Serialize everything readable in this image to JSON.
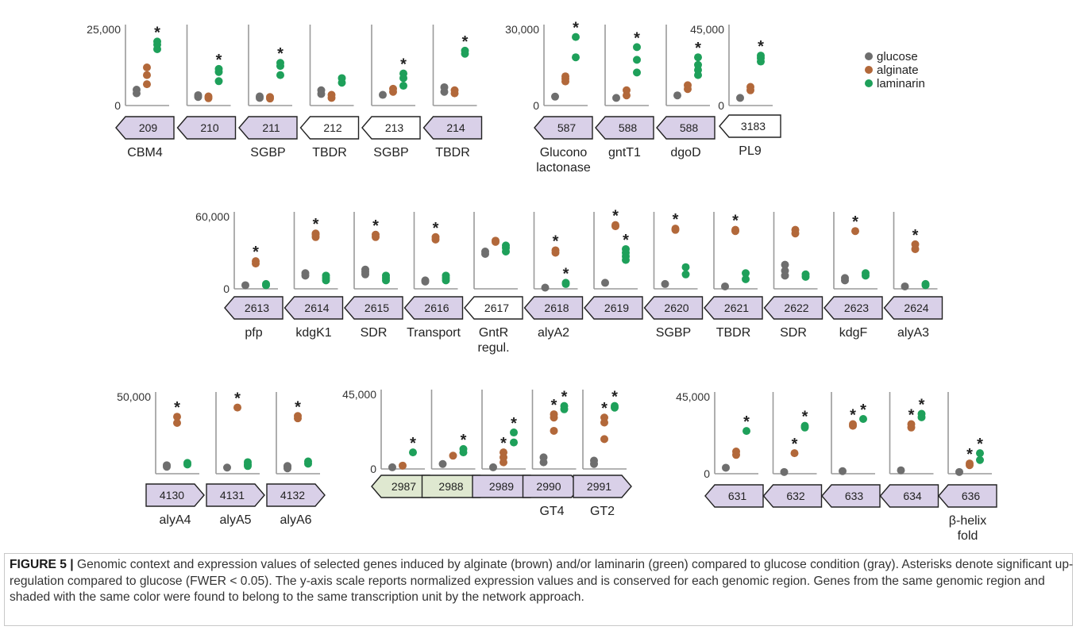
{
  "caption": {
    "label": "FIGURE 5 |",
    "text": "Genomic context and expression values of selected genes induced by alginate (brown) and/or laminarin (green) compared to glucose condition (gray). Asterisks denote significant up-regulation compared to glucose (FWER < 0.05). The y-axis scale reports normalized expression values and is conserved for each genomic region. Genes from the same genomic region and shaded with the same color were found to belong to the same transcription unit by the network approach."
  },
  "legend": [
    {
      "name": "glucose",
      "color": "#6e6e6e"
    },
    {
      "name": "alginate",
      "color": "#b2683a"
    },
    {
      "name": "laminarin",
      "color": "#1ea05a"
    }
  ],
  "colors": {
    "gene_purple": "#d9d0e8",
    "gene_green": "#dfe8d0",
    "gene_white": "#ffffff",
    "axis": "#9a9a9a"
  },
  "chart_data": [
    {
      "type": "scatter",
      "region": "A",
      "ymin_label": "0",
      "ymax_label": "25,000",
      "ylim": [
        0,
        25000
      ],
      "genes": [
        {
          "id": "209",
          "name": "CBM4",
          "dir": "left",
          "fill": "purple",
          "glucose": [
            4000,
            5200
          ],
          "alginate": [
            7000,
            10000,
            12500
          ],
          "laminarin": [
            18500,
            20000,
            21000
          ],
          "sig": [
            "laminarin"
          ]
        },
        {
          "id": "210",
          "name": "",
          "dir": "left",
          "fill": "purple",
          "glucose": [
            2800,
            3400
          ],
          "alginate": [
            2400,
            3000
          ],
          "laminarin": [
            8000,
            11000,
            12000
          ],
          "sig": [
            "laminarin"
          ]
        },
        {
          "id": "211",
          "name": "SGBP",
          "dir": "left",
          "fill": "purple",
          "glucose": [
            2500,
            3000
          ],
          "alginate": [
            2300,
            2800
          ],
          "laminarin": [
            10000,
            13000,
            14000
          ],
          "sig": [
            "laminarin"
          ]
        },
        {
          "id": "212",
          "name": "TBDR",
          "dir": "left",
          "fill": "white",
          "glucose": [
            3800,
            5000
          ],
          "alginate": [
            2500,
            3500
          ],
          "laminarin": [
            7500,
            9000
          ],
          "sig": []
        },
        {
          "id": "213",
          "name": "SGBP",
          "dir": "left",
          "fill": "white",
          "glucose": [
            3500
          ],
          "alginate": [
            4500,
            5500
          ],
          "laminarin": [
            6500,
            9000,
            10500
          ],
          "sig": [
            "laminarin"
          ]
        },
        {
          "id": "214",
          "name": "TBDR",
          "dir": "left",
          "fill": "purple",
          "glucose": [
            4500,
            6000
          ],
          "alginate": [
            4000,
            5000
          ],
          "laminarin": [
            17000,
            18000
          ],
          "sig": [
            "laminarin"
          ]
        }
      ]
    },
    {
      "type": "scatter",
      "region": "B",
      "ymin_label": "0",
      "ymax_label": "30,000",
      "ylim": [
        0,
        30000
      ],
      "genes": [
        {
          "id": "587",
          "name": "Glucono\nlactonase",
          "dir": "left",
          "fill": "purple",
          "glucose": [
            3500
          ],
          "alginate": [
            9500,
            10500,
            11500
          ],
          "laminarin": [
            19000,
            27000
          ],
          "sig": [
            "laminarin"
          ]
        },
        {
          "id": "588",
          "name": "gntT1",
          "dir": "left",
          "fill": "purple",
          "glucose": [
            3000
          ],
          "alginate": [
            4000,
            6000
          ],
          "laminarin": [
            13000,
            18000,
            23000
          ],
          "sig": [
            "laminarin"
          ]
        },
        {
          "id": "588",
          "name": "dgoD",
          "dir": "left",
          "fill": "purple",
          "glucose": [
            4000
          ],
          "alginate": [
            6500,
            8000
          ],
          "laminarin": [
            12000,
            14000,
            16000,
            19000
          ],
          "sig": [
            "laminarin"
          ]
        }
      ]
    },
    {
      "type": "scatter",
      "region": "C",
      "ymin_label": "0",
      "ymax_label": "45,000",
      "ylim": [
        0,
        45000
      ],
      "genes": [
        {
          "id": "3183",
          "name": "PL9",
          "dir": "left",
          "fill": "white",
          "glucose": [
            4500
          ],
          "alginate": [
            9000,
            11000
          ],
          "laminarin": [
            26000,
            28000,
            29500
          ],
          "sig": [
            "laminarin"
          ]
        }
      ]
    },
    {
      "type": "scatter",
      "region": "D",
      "ymin_label": "0",
      "ymax_label": "60,000",
      "ylim": [
        0,
        60000
      ],
      "genes": [
        {
          "id": "2613",
          "name": "pfp",
          "dir": "left",
          "fill": "purple",
          "glucose": [
            3000
          ],
          "alginate": [
            21000,
            23000
          ],
          "laminarin": [
            3000,
            4000
          ],
          "sig": [
            "alginate"
          ]
        },
        {
          "id": "2614",
          "name": "kdgK1",
          "dir": "left",
          "fill": "purple",
          "glucose": [
            11000,
            13000
          ],
          "alginate": [
            43000,
            45000,
            46000
          ],
          "laminarin": [
            7000,
            9000,
            11000
          ],
          "sig": [
            "alginate"
          ]
        },
        {
          "id": "2615",
          "name": "SDR",
          "dir": "left",
          "fill": "purple",
          "glucose": [
            12000,
            14000,
            16000
          ],
          "alginate": [
            43000,
            45000
          ],
          "laminarin": [
            7000,
            9000,
            11000
          ],
          "sig": [
            "alginate"
          ]
        },
        {
          "id": "2616",
          "name": "Transport",
          "dir": "left",
          "fill": "purple",
          "glucose": [
            6000,
            7000
          ],
          "alginate": [
            41000,
            43000
          ],
          "laminarin": [
            7000,
            9000,
            11000
          ],
          "sig": [
            "alginate"
          ]
        },
        {
          "id": "2617",
          "name": "GntR\nregul.",
          "dir": "left",
          "fill": "white",
          "glucose": [
            29000,
            31000
          ],
          "alginate": [
            39000,
            40000
          ],
          "laminarin": [
            31000,
            34000,
            36000
          ],
          "sig": []
        },
        {
          "id": "2618",
          "name": "alyA2",
          "dir": "left",
          "fill": "purple",
          "glucose": [
            1000
          ],
          "alginate": [
            30000,
            32000
          ],
          "laminarin": [
            4000,
            5000
          ],
          "sig": [
            "alginate",
            "laminarin"
          ]
        },
        {
          "id": "2619",
          "name": "",
          "dir": "left",
          "fill": "purple",
          "glucose": [
            5000
          ],
          "alginate": [
            52000,
            53000
          ],
          "laminarin": [
            24000,
            27000,
            30000,
            33000
          ],
          "sig": [
            "alginate",
            "laminarin"
          ]
        },
        {
          "id": "2620",
          "name": "SGBP",
          "dir": "left",
          "fill": "purple",
          "glucose": [
            4000
          ],
          "alginate": [
            49000,
            50000
          ],
          "laminarin": [
            12000,
            18000
          ],
          "sig": [
            "alginate"
          ]
        },
        {
          "id": "2621",
          "name": "TBDR",
          "dir": "left",
          "fill": "purple",
          "glucose": [
            2000
          ],
          "alginate": [
            48000,
            49000
          ],
          "laminarin": [
            8000,
            13000
          ],
          "sig": [
            "alginate"
          ]
        },
        {
          "id": "2622",
          "name": "SDR",
          "dir": "left",
          "fill": "purple",
          "glucose": [
            11000,
            15000,
            20000
          ],
          "alginate": [
            46000,
            49000
          ],
          "laminarin": [
            10000,
            12000
          ],
          "sig": []
        },
        {
          "id": "2623",
          "name": "kdgF",
          "dir": "left",
          "fill": "purple",
          "glucose": [
            7000,
            9000
          ],
          "alginate": [
            48000
          ],
          "laminarin": [
            11000,
            13000
          ],
          "sig": [
            "alginate"
          ]
        },
        {
          "id": "2624",
          "name": "alyA3",
          "dir": "left",
          "fill": "purple",
          "glucose": [
            2000
          ],
          "alginate": [
            33000,
            37000
          ],
          "laminarin": [
            3000,
            4000
          ],
          "sig": [
            "alginate"
          ]
        }
      ]
    },
    {
      "type": "scatter",
      "region": "E",
      "ymin_label": "",
      "ymax_label": "50,000",
      "ylim": [
        0,
        50000
      ],
      "genes": [
        {
          "id": "4130",
          "name": "alyA4",
          "dir": "right",
          "fill": "purple",
          "glucose": [
            4500,
            5500
          ],
          "alginate": [
            33000,
            37000
          ],
          "laminarin": [
            6000,
            7000
          ],
          "sig": [
            "alginate"
          ]
        },
        {
          "id": "4131",
          "name": "alyA5",
          "dir": "right",
          "fill": "purple",
          "glucose": [
            4000
          ],
          "alginate": [
            43000
          ],
          "laminarin": [
            5000,
            6000,
            7500
          ],
          "sig": [
            "alginate"
          ]
        },
        {
          "id": "4132",
          "name": "alyA6",
          "dir": "right",
          "fill": "purple",
          "glucose": [
            3500,
            4500,
            5000
          ],
          "alginate": [
            36000,
            37500
          ],
          "laminarin": [
            6500,
            8000
          ],
          "sig": [
            "alginate"
          ]
        }
      ]
    },
    {
      "type": "scatter",
      "region": "F",
      "ymin_label": "0",
      "ymax_label": "45,000",
      "ylim": [
        0,
        45000
      ],
      "genes": [
        {
          "id": "2987",
          "name": "",
          "dir": "left",
          "fill": "green",
          "glucose": [
            1000
          ],
          "alginate": [
            2000
          ],
          "laminarin": [
            10000
          ],
          "sig": [
            "laminarin"
          ]
        },
        {
          "id": "2988",
          "name": "",
          "dir": "none",
          "fill": "green",
          "glucose": [
            3000
          ],
          "alginate": [
            8000
          ],
          "laminarin": [
            10000,
            12000
          ],
          "sig": [
            "laminarin"
          ]
        },
        {
          "id": "2989",
          "name": "",
          "dir": "none",
          "fill": "purple",
          "glucose": [
            1000
          ],
          "alginate": [
            4000,
            7000,
            10000
          ],
          "laminarin": [
            16000,
            22000
          ],
          "sig": [
            "alginate",
            "laminarin"
          ]
        },
        {
          "id": "2990",
          "name": "GT4",
          "dir": "right",
          "fill": "purple",
          "glucose": [
            4000,
            7000
          ],
          "alginate": [
            23000,
            31000,
            33000
          ],
          "laminarin": [
            36000,
            38000
          ],
          "sig": [
            "alginate",
            "laminarin"
          ]
        },
        {
          "id": "2991",
          "name": "GT2",
          "dir": "right",
          "fill": "purple",
          "glucose": [
            3000,
            5000
          ],
          "alginate": [
            18000,
            28000,
            31000
          ],
          "laminarin": [
            37000,
            38000
          ],
          "sig": [
            "alginate",
            "laminarin"
          ]
        }
      ]
    },
    {
      "type": "scatter",
      "region": "G",
      "ymin_label": "0",
      "ymax_label": "45,000",
      "ylim": [
        0,
        45000
      ],
      "genes": [
        {
          "id": "631",
          "name": "",
          "dir": "left",
          "fill": "purple",
          "glucose": [
            3500
          ],
          "alginate": [
            11000,
            13000
          ],
          "laminarin": [
            25000
          ],
          "sig": [
            "laminarin"
          ]
        },
        {
          "id": "632",
          "name": "",
          "dir": "left",
          "fill": "purple",
          "glucose": [
            1000
          ],
          "alginate": [
            12000
          ],
          "laminarin": [
            27000,
            28000
          ],
          "sig": [
            "alginate",
            "laminarin"
          ]
        },
        {
          "id": "633",
          "name": "",
          "dir": "left",
          "fill": "purple",
          "glucose": [
            1500
          ],
          "alginate": [
            28000,
            29000
          ],
          "laminarin": [
            32000
          ],
          "sig": [
            "alginate",
            "laminarin"
          ]
        },
        {
          "id": "634",
          "name": "",
          "dir": "left",
          "fill": "purple",
          "glucose": [
            2000
          ],
          "alginate": [
            27000,
            29000
          ],
          "laminarin": [
            33000,
            35000
          ],
          "sig": [
            "alginate",
            "laminarin"
          ]
        },
        {
          "id": "636",
          "name": "β-helix\nfold",
          "dir": "left",
          "fill": "purple",
          "glucose": [
            1000
          ],
          "alginate": [
            5000,
            6000
          ],
          "laminarin": [
            8000,
            12000
          ],
          "sig": [
            "alginate",
            "laminarin"
          ]
        }
      ]
    }
  ]
}
